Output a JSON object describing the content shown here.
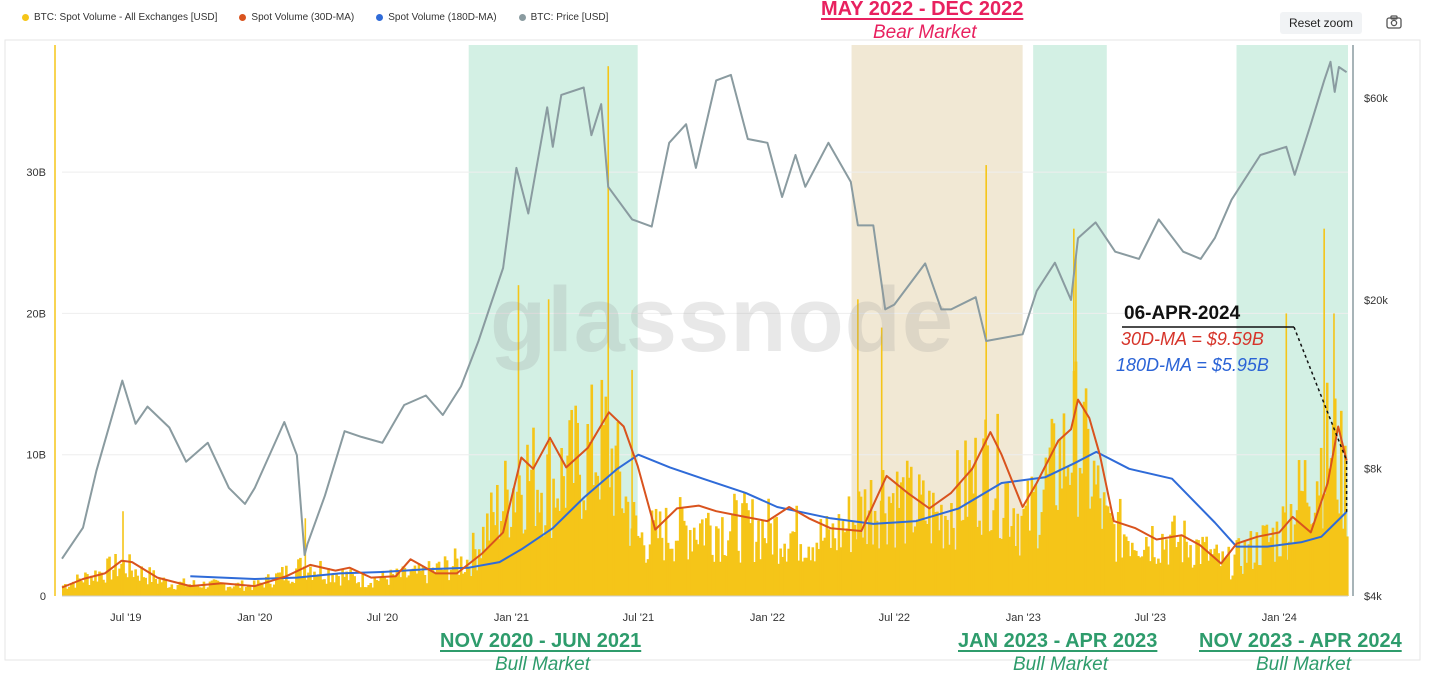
{
  "legend": [
    {
      "label": "BTC: Spot Volume - All Exchanges [USD]",
      "color": "#f5c518"
    },
    {
      "label": "Spot Volume (30D-MA)",
      "color": "#d9531e"
    },
    {
      "label": "Spot Volume (180D-MA)",
      "color": "#2f6bd8"
    },
    {
      "label": "BTC: Price [USD]",
      "color": "#8a9ba0"
    }
  ],
  "toolbar": {
    "reset_zoom": "Reset zoom",
    "camera_icon": "camera-icon"
  },
  "watermark": "glassnode",
  "annotations": {
    "bear": {
      "title": "MAY 2022 - DEC 2022",
      "subtitle": "Bear Market"
    },
    "bull1": {
      "title": "NOV 2020 - JUN 2021",
      "subtitle": "Bull Market"
    },
    "bull2": {
      "title": "JAN 2023 - APR 2023",
      "subtitle": "Bull Market"
    },
    "bull3": {
      "title": "NOV 2023 - APR 2024",
      "subtitle": "Bull Market"
    }
  },
  "callout": {
    "date": "06-APR-2024",
    "ma30": "30D-MA = $9.59B",
    "ma180": "180D-MA = $5.95B"
  },
  "chart_data": {
    "type": "area",
    "title": "",
    "xlabel": "",
    "ylabel": "",
    "x_start": "2019-04-01",
    "x_end": "2024-04-08",
    "x_ticks": [
      {
        "label": "Jul '19",
        "date": "2019-07-01"
      },
      {
        "label": "Jan '20",
        "date": "2020-01-01"
      },
      {
        "label": "Jul '20",
        "date": "2020-07-01"
      },
      {
        "label": "Jan '21",
        "date": "2021-01-01"
      },
      {
        "label": "Jul '21",
        "date": "2021-07-01"
      },
      {
        "label": "Jan '22",
        "date": "2022-01-01"
      },
      {
        "label": "Jul '22",
        "date": "2022-07-01"
      },
      {
        "label": "Jan '23",
        "date": "2023-01-01"
      },
      {
        "label": "Jul '23",
        "date": "2023-07-01"
      },
      {
        "label": "Jan '24",
        "date": "2024-01-01"
      }
    ],
    "y_left": {
      "ticks": [
        {
          "label": "0",
          "value": 0
        },
        {
          "label": "10B",
          "value": 10
        },
        {
          "label": "20B",
          "value": 20
        },
        {
          "label": "30B",
          "value": 30
        }
      ],
      "ylim": [
        0,
        39
      ],
      "unit": "B USD"
    },
    "y_right": {
      "scale": "log",
      "ticks": [
        {
          "label": "$4k",
          "value": 4000
        },
        {
          "label": "$8k",
          "value": 8000
        },
        {
          "label": "$20k",
          "value": 20000
        },
        {
          "label": "$60k",
          "value": 60000
        }
      ],
      "ylim": [
        4000,
        80000
      ]
    },
    "shaded_regions": [
      {
        "label": "NOV 2020 - JUN 2021",
        "start": "2020-11-01",
        "end": "2021-06-30",
        "color": "#d3f0e4"
      },
      {
        "label": "MAY 2022 - DEC 2022",
        "start": "2022-05-01",
        "end": "2022-12-31",
        "color": "#f1e8d4"
      },
      {
        "label": "JAN 2023 - APR 2023",
        "start": "2023-01-15",
        "end": "2023-04-30",
        "color": "#d3f0e4"
      },
      {
        "label": "NOV 2023 - APR 2024",
        "start": "2023-11-01",
        "end": "2024-04-08",
        "color": "#d3f0e4"
      }
    ],
    "series": [
      {
        "name": "BTC: Price [USD]",
        "axis": "right",
        "color": "#8a9ba0",
        "points": [
          [
            "2019-04-01",
            4900
          ],
          [
            "2019-05-01",
            5800
          ],
          [
            "2019-05-20",
            7900
          ],
          [
            "2019-06-26",
            12900
          ],
          [
            "2019-07-15",
            10200
          ],
          [
            "2019-08-01",
            11200
          ],
          [
            "2019-09-01",
            10000
          ],
          [
            "2019-09-25",
            8300
          ],
          [
            "2019-10-26",
            9200
          ],
          [
            "2019-11-25",
            7200
          ],
          [
            "2019-12-18",
            6600
          ],
          [
            "2020-01-01",
            7200
          ],
          [
            "2020-02-12",
            10300
          ],
          [
            "2020-03-01",
            8600
          ],
          [
            "2020-03-12",
            5000
          ],
          [
            "2020-03-16",
            5300
          ],
          [
            "2020-04-10",
            6900
          ],
          [
            "2020-05-08",
            9800
          ],
          [
            "2020-06-01",
            9500
          ],
          [
            "2020-07-01",
            9200
          ],
          [
            "2020-08-01",
            11300
          ],
          [
            "2020-09-01",
            11900
          ],
          [
            "2020-09-25",
            10700
          ],
          [
            "2020-10-21",
            12500
          ],
          [
            "2020-11-15",
            16000
          ],
          [
            "2020-12-01",
            19200
          ],
          [
            "2020-12-20",
            23800
          ],
          [
            "2021-01-08",
            41000
          ],
          [
            "2021-01-25",
            32000
          ],
          [
            "2021-02-21",
            57000
          ],
          [
            "2021-03-01",
            46000
          ],
          [
            "2021-03-13",
            61000
          ],
          [
            "2021-04-14",
            63500
          ],
          [
            "2021-04-25",
            49000
          ],
          [
            "2021-05-09",
            58000
          ],
          [
            "2021-05-19",
            37000
          ],
          [
            "2021-06-22",
            31000
          ],
          [
            "2021-07-20",
            29800
          ],
          [
            "2021-08-14",
            47000
          ],
          [
            "2021-09-07",
            52000
          ],
          [
            "2021-09-21",
            41000
          ],
          [
            "2021-10-20",
            66000
          ],
          [
            "2021-11-10",
            68000
          ],
          [
            "2021-12-04",
            48000
          ],
          [
            "2022-01-01",
            47000
          ],
          [
            "2022-01-22",
            35000
          ],
          [
            "2022-02-10",
            44000
          ],
          [
            "2022-02-24",
            37000
          ],
          [
            "2022-03-29",
            47000
          ],
          [
            "2022-04-30",
            38000
          ],
          [
            "2022-05-10",
            30000
          ],
          [
            "2022-06-01",
            30000
          ],
          [
            "2022-06-18",
            19000
          ],
          [
            "2022-07-01",
            19500
          ],
          [
            "2022-08-14",
            24400
          ],
          [
            "2022-09-06",
            19000
          ],
          [
            "2022-09-20",
            19000
          ],
          [
            "2022-10-25",
            20300
          ],
          [
            "2022-11-09",
            16000
          ],
          [
            "2022-12-31",
            16600
          ],
          [
            "2023-01-20",
            21000
          ],
          [
            "2023-02-15",
            24500
          ],
          [
            "2023-03-10",
            20000
          ],
          [
            "2023-03-20",
            28000
          ],
          [
            "2023-04-14",
            30500
          ],
          [
            "2023-05-12",
            26000
          ],
          [
            "2023-06-15",
            25000
          ],
          [
            "2023-07-13",
            31000
          ],
          [
            "2023-08-17",
            26000
          ],
          [
            "2023-09-11",
            25000
          ],
          [
            "2023-10-01",
            28000
          ],
          [
            "2023-10-25",
            34500
          ],
          [
            "2023-12-05",
            44000
          ],
          [
            "2024-01-11",
            46000
          ],
          [
            "2024-01-23",
            39500
          ],
          [
            "2024-02-15",
            52000
          ],
          [
            "2024-03-05",
            66000
          ],
          [
            "2024-03-14",
            73000
          ],
          [
            "2024-03-20",
            62000
          ],
          [
            "2024-03-26",
            71000
          ],
          [
            "2024-04-06",
            69000
          ]
        ]
      },
      {
        "name": "Spot Volume (30D-MA)",
        "axis": "left",
        "color": "#d9531e",
        "points": [
          [
            "2019-04-01",
            0.6
          ],
          [
            "2019-05-01",
            1.2
          ],
          [
            "2019-06-01",
            1.6
          ],
          [
            "2019-06-25",
            2.5
          ],
          [
            "2019-07-10",
            2.4
          ],
          [
            "2019-08-15",
            1.3
          ],
          [
            "2019-10-01",
            0.7
          ],
          [
            "2019-11-15",
            0.9
          ],
          [
            "2020-01-01",
            0.7
          ],
          [
            "2020-02-15",
            1.4
          ],
          [
            "2020-03-20",
            2.2
          ],
          [
            "2020-04-25",
            1.8
          ],
          [
            "2020-05-15",
            2.0
          ],
          [
            "2020-06-15",
            1.3
          ],
          [
            "2020-07-20",
            1.4
          ],
          [
            "2020-08-10",
            2.6
          ],
          [
            "2020-09-15",
            1.6
          ],
          [
            "2020-10-15",
            1.6
          ],
          [
            "2020-11-20",
            3.0
          ],
          [
            "2020-12-20",
            4.5
          ],
          [
            "2021-01-15",
            9.8
          ],
          [
            "2021-02-01",
            9.0
          ],
          [
            "2021-02-25",
            11.2
          ],
          [
            "2021-03-20",
            9.1
          ],
          [
            "2021-04-20",
            10.5
          ],
          [
            "2021-05-20",
            13.0
          ],
          [
            "2021-06-10",
            12.0
          ],
          [
            "2021-06-30",
            9.2
          ],
          [
            "2021-07-25",
            4.7
          ],
          [
            "2021-08-25",
            6.2
          ],
          [
            "2021-09-25",
            6.4
          ],
          [
            "2021-10-20",
            6.0
          ],
          [
            "2021-11-30",
            5.6
          ],
          [
            "2022-01-01",
            5.3
          ],
          [
            "2022-02-01",
            6.3
          ],
          [
            "2022-03-01",
            5.5
          ],
          [
            "2022-04-01",
            4.8
          ],
          [
            "2022-05-15",
            4.6
          ],
          [
            "2022-06-20",
            8.5
          ],
          [
            "2022-07-20",
            7.3
          ],
          [
            "2022-08-20",
            6.2
          ],
          [
            "2022-09-20",
            7.3
          ],
          [
            "2022-10-20",
            9.0
          ],
          [
            "2022-11-15",
            11.6
          ],
          [
            "2022-12-01",
            10.0
          ],
          [
            "2022-12-31",
            6.3
          ],
          [
            "2023-01-20",
            8.0
          ],
          [
            "2023-02-20",
            11.0
          ],
          [
            "2023-03-10",
            11.8
          ],
          [
            "2023-03-20",
            13.9
          ],
          [
            "2023-04-05",
            12.6
          ],
          [
            "2023-04-20",
            10.0
          ],
          [
            "2023-05-10",
            5.3
          ],
          [
            "2023-06-10",
            4.8
          ],
          [
            "2023-07-10",
            4.0
          ],
          [
            "2023-08-15",
            4.3
          ],
          [
            "2023-09-10",
            3.6
          ],
          [
            "2023-10-10",
            2.3
          ],
          [
            "2023-11-01",
            3.7
          ],
          [
            "2023-12-01",
            4.2
          ],
          [
            "2024-01-01",
            4.5
          ],
          [
            "2024-01-20",
            5.6
          ],
          [
            "2024-02-15",
            4.5
          ],
          [
            "2024-03-10",
            8.0
          ],
          [
            "2024-03-25",
            12.0
          ],
          [
            "2024-04-06",
            9.59
          ]
        ]
      },
      {
        "name": "Spot Volume (180D-MA)",
        "axis": "left",
        "color": "#2f6bd8",
        "points": [
          [
            "2019-10-01",
            1.4
          ],
          [
            "2020-01-01",
            1.2
          ],
          [
            "2020-03-01",
            1.3
          ],
          [
            "2020-05-01",
            1.6
          ],
          [
            "2020-07-01",
            1.7
          ],
          [
            "2020-09-01",
            1.9
          ],
          [
            "2020-11-01",
            2.0
          ],
          [
            "2020-12-15",
            2.4
          ],
          [
            "2021-01-15",
            3.3
          ],
          [
            "2021-03-01",
            4.8
          ],
          [
            "2021-04-15",
            7.0
          ],
          [
            "2021-06-01",
            9.0
          ],
          [
            "2021-07-01",
            10.0
          ],
          [
            "2021-08-15",
            9.1
          ],
          [
            "2021-10-01",
            8.3
          ],
          [
            "2021-12-01",
            7.3
          ],
          [
            "2022-01-15",
            6.3
          ],
          [
            "2022-04-01",
            5.5
          ],
          [
            "2022-06-01",
            5.1
          ],
          [
            "2022-08-01",
            5.3
          ],
          [
            "2022-10-01",
            6.2
          ],
          [
            "2022-12-01",
            8.0
          ],
          [
            "2023-02-01",
            8.4
          ],
          [
            "2023-03-15",
            9.4
          ],
          [
            "2023-04-15",
            10.2
          ],
          [
            "2023-06-01",
            9.0
          ],
          [
            "2023-08-01",
            8.3
          ],
          [
            "2023-10-01",
            5.2
          ],
          [
            "2023-11-01",
            3.5
          ],
          [
            "2023-12-15",
            3.5
          ],
          [
            "2024-02-01",
            3.8
          ],
          [
            "2024-03-01",
            4.2
          ],
          [
            "2024-04-06",
            5.95
          ]
        ]
      },
      {
        "name": "BTC: Spot Volume - All Exchanges [USD]",
        "axis": "left",
        "color": "#f5c518",
        "envelope_points": [
          [
            "2019-04-01",
            1.0
          ],
          [
            "2019-06-25",
            3.0
          ],
          [
            "2019-09-01",
            1.2
          ],
          [
            "2020-01-01",
            1.0
          ],
          [
            "2020-03-15",
            3.0
          ],
          [
            "2020-06-01",
            1.5
          ],
          [
            "2020-09-01",
            2.2
          ],
          [
            "2020-11-01",
            3.5
          ],
          [
            "2021-01-15",
            12.0
          ],
          [
            "2021-03-01",
            11.0
          ],
          [
            "2021-05-15",
            15.0
          ],
          [
            "2021-07-01",
            5.5
          ],
          [
            "2021-10-01",
            7.0
          ],
          [
            "2022-01-01",
            6.5
          ],
          [
            "2022-04-01",
            5.5
          ],
          [
            "2022-06-15",
            10.0
          ],
          [
            "2022-09-01",
            7.5
          ],
          [
            "2022-11-15",
            13.0
          ],
          [
            "2023-01-01",
            7.0
          ],
          [
            "2023-03-20",
            16.0
          ],
          [
            "2023-05-01",
            6.5
          ],
          [
            "2023-09-01",
            5.0
          ],
          [
            "2023-10-15",
            3.0
          ],
          [
            "2024-01-01",
            6.0
          ],
          [
            "2024-03-15",
            15.0
          ],
          [
            "2024-04-06",
            10.5
          ]
        ],
        "spike_points": [
          [
            "2019-06-27",
            6.0
          ],
          [
            "2020-03-13",
            5.5
          ],
          [
            "2021-01-11",
            22.0
          ],
          [
            "2021-02-23",
            21.0
          ],
          [
            "2021-05-19",
            37.5
          ],
          [
            "2021-06-22",
            16.0
          ],
          [
            "2022-05-10",
            21.0
          ],
          [
            "2022-06-13",
            19.0
          ],
          [
            "2022-11-09",
            30.5
          ],
          [
            "2023-03-14",
            26.0
          ],
          [
            "2023-03-17",
            24.0
          ],
          [
            "2024-01-11",
            20.0
          ],
          [
            "2024-03-05",
            26.0
          ],
          [
            "2024-03-19",
            20.0
          ]
        ]
      }
    ]
  }
}
